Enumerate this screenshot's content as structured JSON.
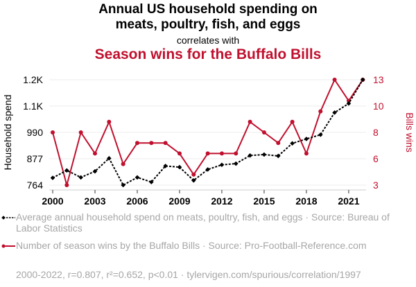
{
  "header": {
    "title_line1": "Annual US household spending on",
    "title_line2": "meats, poultry, fish, and eggs",
    "correlates_label": "correlates with",
    "title2": "Season wins for the Buffalo Bills"
  },
  "colors": {
    "series1": "#000000",
    "series2": "#c0102e",
    "grid": "#eeeeee",
    "legend_text": "#a6a6a6"
  },
  "legend": {
    "series1": "Average annual household spend on meats, poultry, fish, and eggs · Source: Bureau of Labor Statistics",
    "series2": "Number of season wins by the Buffalo Bills · Source: Pro-Football-Reference.com"
  },
  "footer": "2000-2022, r=0.807, r²=0.652, p<0.01 · tylervigen.com/spurious/correlation/1997",
  "chart_data": {
    "type": "line",
    "title": "Annual US household spending on meats, poultry, fish, and eggs correlates with Season wins for the Buffalo Bills",
    "xlabel": "",
    "x": [
      2000,
      2001,
      2002,
      2003,
      2004,
      2005,
      2006,
      2007,
      2008,
      2009,
      2010,
      2011,
      2012,
      2013,
      2014,
      2015,
      2016,
      2017,
      2018,
      2019,
      2020,
      2021,
      2022
    ],
    "x_ticks": [
      2000,
      2003,
      2006,
      2009,
      2012,
      2015,
      2018,
      2021
    ],
    "x_tick_labels": [
      "2000",
      "2003",
      "2006",
      "2009",
      "2012",
      "2015",
      "2018",
      "2021"
    ],
    "grid": true,
    "legend_position": "bottom",
    "y_left": {
      "label": "Household spend",
      "range": [
        764,
        1216
      ],
      "ticks": [
        764,
        877,
        990,
        1103,
        1216
      ],
      "tick_labels": [
        "764",
        "877",
        "990",
        "1.1K",
        "1.2K"
      ]
    },
    "y_right": {
      "label": "Bills wins",
      "range": [
        3,
        13
      ],
      "ticks": [
        3,
        5.5,
        8,
        10.5,
        13
      ],
      "tick_labels": [
        "3",
        "6",
        "8",
        "10",
        "13"
      ]
    },
    "series": [
      {
        "name": "Average annual household spend on meats, poultry, fish, and eggs",
        "axis": "left",
        "style": "dotted",
        "marker": "diamond",
        "values": [
          795,
          827,
          797,
          823,
          879,
          764,
          797,
          777,
          846,
          841,
          784,
          831,
          851,
          856,
          891,
          895,
          889,
          943,
          962,
          980,
          1075,
          1114,
          1216
        ]
      },
      {
        "name": "Number of season wins by the Buffalo Bills",
        "axis": "right",
        "style": "solid",
        "marker": "circle",
        "values": [
          8,
          3,
          8,
          6,
          9,
          5,
          7,
          7,
          7,
          6,
          4,
          6,
          6,
          6,
          9,
          8,
          7,
          9,
          6,
          10,
          13,
          11,
          13
        ]
      }
    ]
  }
}
